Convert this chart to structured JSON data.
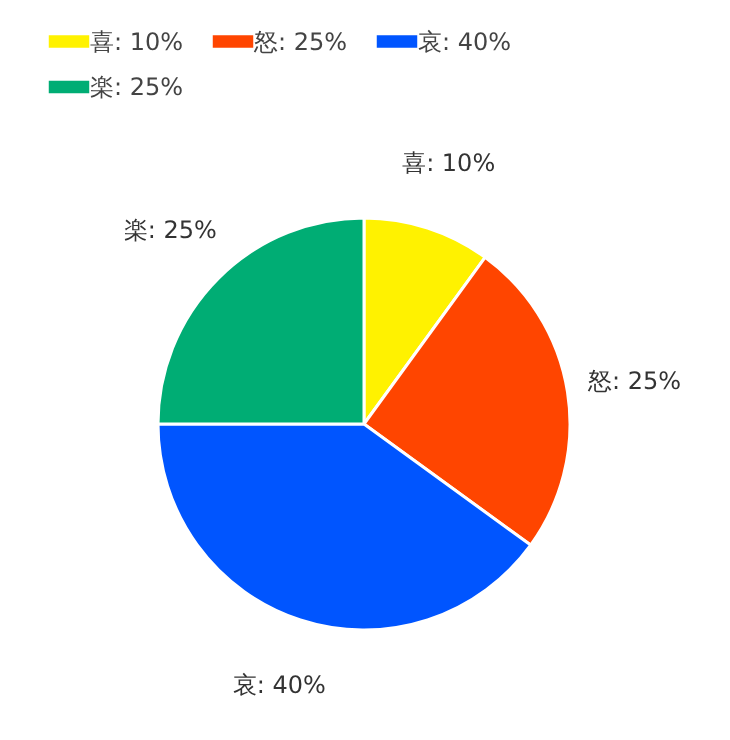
{
  "chart_data": {
    "type": "pie",
    "categories": [
      "喜: 10%",
      "怒: 25%",
      "哀: 40%",
      "楽: 25%"
    ],
    "values": [
      10,
      25,
      40,
      25
    ],
    "colors": [
      "#fff200",
      "#ff4500",
      "#0055ff",
      "#00ad74"
    ],
    "legend": "top left"
  }
}
